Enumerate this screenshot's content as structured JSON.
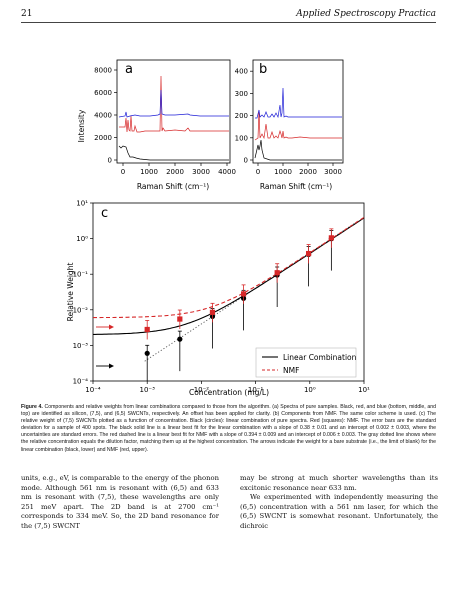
{
  "header": {
    "page_number": "21",
    "journal": "Applied Spectroscopy Practica"
  },
  "figure": {
    "panel_a": {
      "letter": "a",
      "ylabel": "Intensity",
      "xlabel": "Raman Shift (cm⁻¹)",
      "yticks": [
        "0",
        "2000",
        "4000",
        "6000",
        "8000"
      ],
      "xticks": [
        "0",
        "1000",
        "2000",
        "3000",
        "4000"
      ]
    },
    "panel_b": {
      "letter": "b",
      "xlabel": "Raman Shift (cm⁻¹)",
      "yticks": [
        "0",
        "100",
        "200",
        "300",
        "400"
      ],
      "xticks": [
        "0",
        "1000",
        "2000",
        "3000"
      ]
    },
    "panel_c": {
      "letter": "c",
      "ylabel": "Relative Weight",
      "xlabel": "Concentration (mg/L)",
      "yticks": [
        "10⁻⁴",
        "10⁻³",
        "10⁻²",
        "10⁻¹",
        "10⁰",
        "10¹"
      ],
      "xticks": [
        "10⁻⁴",
        "10⁻³",
        "10⁻²",
        "10⁻¹",
        "10⁰",
        "10¹"
      ],
      "legend": [
        "Linear Combination",
        "NMF"
      ]
    },
    "colors": {
      "black": "#000000",
      "red": "#d62728",
      "blue": "#1f1fd6",
      "gray": "#555555"
    }
  },
  "chart_data": {
    "type": "scatter",
    "xlabel": "Concentration (mg/L)",
    "ylabel": "Relative Weight",
    "xscale": "log",
    "yscale": "log",
    "xlim": [
      0.0001,
      10
    ],
    "ylim": [
      0.0001,
      10
    ],
    "series": [
      {
        "name": "Linear Combination",
        "marker": "circle",
        "color": "#000000",
        "x": [
          0.001,
          0.004,
          0.016,
          0.06,
          0.25,
          0.95,
          2.5
        ],
        "y": [
          0.0006,
          0.0015,
          0.0065,
          0.021,
          0.095,
          0.36,
          1.0
        ],
        "fit": {
          "slope": 0.38,
          "intercept": 0.002
        }
      },
      {
        "name": "NMF",
        "marker": "square",
        "color": "#d62728",
        "x": [
          0.001,
          0.004,
          0.016,
          0.06,
          0.25,
          0.95,
          2.5
        ],
        "y": [
          0.0028,
          0.0055,
          0.0085,
          0.028,
          0.11,
          0.38,
          1.05
        ],
        "fit": {
          "slope": 0.394,
          "intercept": 0.006
        }
      }
    ],
    "dilution_line": {
      "color": "#555555",
      "style": "dotted"
    }
  },
  "caption": {
    "label": "Figure 4.",
    "text": "Components and relative weights from linear combinations compared to those from the algorithm. (a) Spectra of pure samples. Black, red, and blue (bottom, middle, and top) are identified as silicon, (7,5), and (6,5) SWCNTs, respectively. An offset has been applied for clarity. (b) Components from NMF. The same color scheme is used. (c) The relative weight of (7,5) SWCNTs plotted as a function of concentration. Black (circles): linear combination of pure spectra. Red (squares): NMF. The error bars are the standard deviation for a sample of 400 spots. The black solid line is a linear best fit for the linear combination with a slope of 0.38 ± 0.01 and an intercept of 0.002 ± 0.003, where the uncertainties are standard errors. The red dashed line is a linear best fit for NMF with a slope of 0.394 ± 0.009 and an intercept of 0.006 ± 0.003. The gray dotted line shows where the relative concentration equals the dilution factor, matching them up at the highest concentration. The arrows indicate the weight for a bare substrate (i.e., the limit of blank) for the linear combination (black, lower) and NMF (red, upper)."
  },
  "body": {
    "left_col": "units, e.g., eV, is comparable to the energy of the phonon mode. Although 561 nm is resonant with (6,5) and 633 nm is resonant with (7,5), these wavelengths are only 251 meV apart. The 2D band is at 2700 cm⁻¹ corresponds to 334 meV. So, the 2D band resonance for the (7,5) SWCNT",
    "right_col_p1": "may be strong at much shorter wavelengths than its excitonic resonance near 633 nm.",
    "right_col_p2": "We experimented with independently measuring the (6,5) concentration with a 561 nm laser, for which the (6,5) SWCNT is somewhat resonant. Unfortunately, the dichroic"
  }
}
